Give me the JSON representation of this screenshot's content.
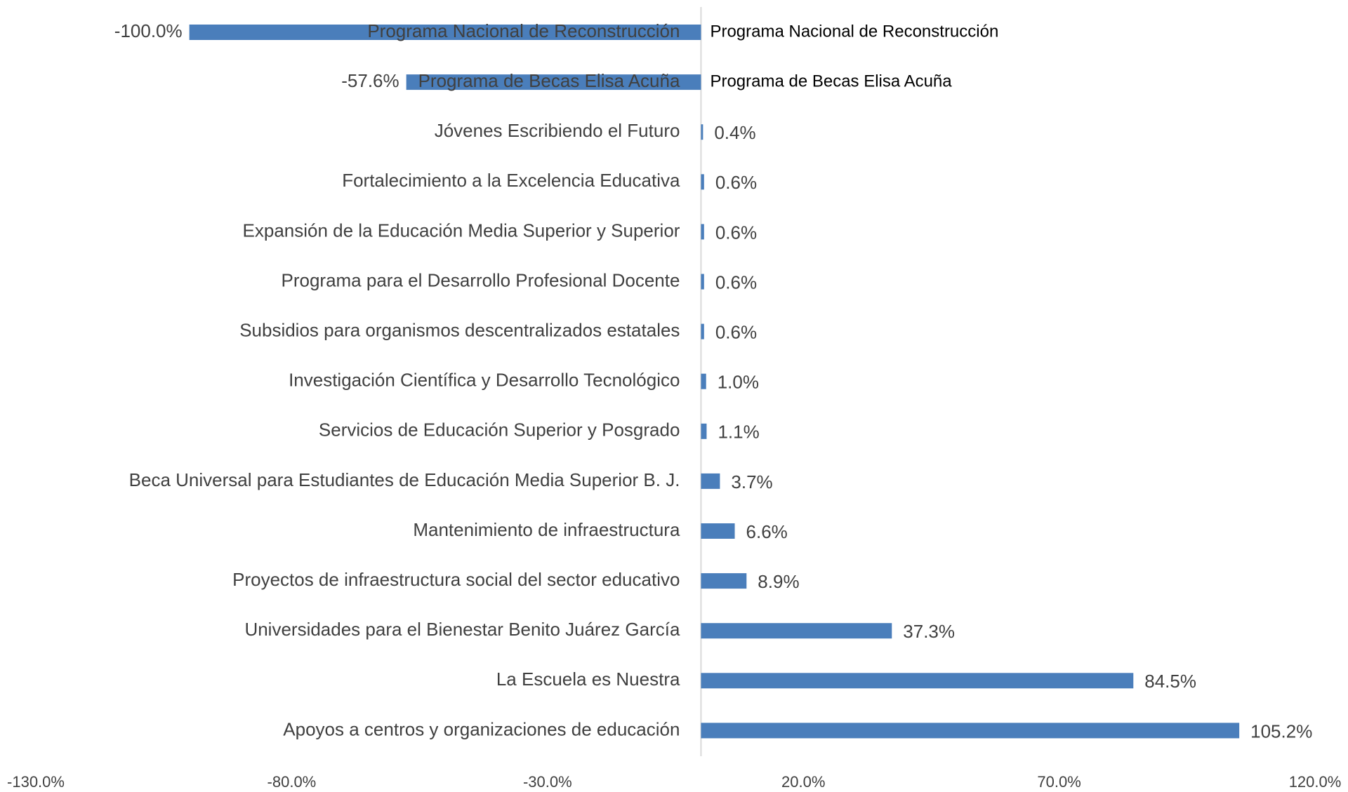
{
  "chart_data": {
    "type": "bar",
    "orientation": "horizontal",
    "color": "#4a7ebb",
    "categories": [
      "Programa Nacional de Reconstrucción",
      "Programa de Becas Elisa Acuña",
      "Jóvenes Escribiendo el Futuro",
      "Fortalecimiento a la Excelencia Educativa",
      "Expansión de la Educación Media Superior y Superior",
      "Programa para el Desarrollo Profesional Docente",
      "Subsidios para organismos descentralizados estatales",
      "Investigación Científica y Desarrollo Tecnológico",
      "Servicios de Educación Superior y Posgrado",
      "Beca Universal para Estudiantes de Educación Media Superior B. J.",
      "Mantenimiento de infraestructura",
      "Proyectos de infraestructura social del sector educativo",
      "Universidades para el Bienestar Benito Juárez García",
      "La Escuela es Nuestra",
      "Apoyos a centros y organizaciones de educación"
    ],
    "values": [
      -100.0,
      -57.6,
      0.4,
      0.6,
      0.6,
      0.6,
      0.6,
      1.0,
      1.1,
      3.7,
      6.6,
      8.9,
      37.3,
      84.5,
      105.2
    ],
    "value_labels": [
      "-100.0%",
      "-57.6%",
      "0.4%",
      "0.6%",
      "0.6%",
      "0.6%",
      "0.6%",
      "1.0%",
      "1.1%",
      "3.7%",
      "6.6%",
      "8.9%",
      "37.3%",
      "84.5%",
      "105.2%"
    ],
    "xlim": [
      -130,
      120
    ],
    "xticks": [
      {
        "value": -130,
        "label": "-130.0%"
      },
      {
        "value": -80,
        "label": "-80.0%"
      },
      {
        "value": -30,
        "label": "-30.0%"
      },
      {
        "value": 20,
        "label": "20.0%"
      },
      {
        "value": 70,
        "label": "70.0%"
      },
      {
        "value": 120,
        "label": "120.0%"
      }
    ]
  }
}
